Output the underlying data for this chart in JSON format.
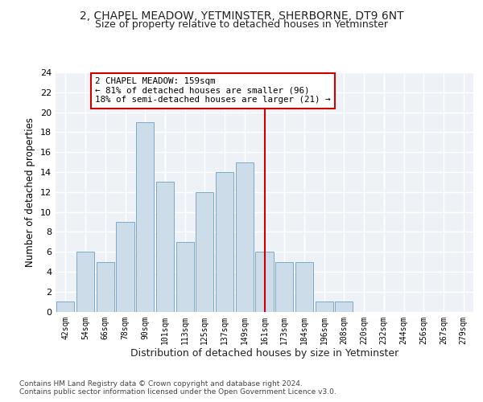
{
  "title": "2, CHAPEL MEADOW, YETMINSTER, SHERBORNE, DT9 6NT",
  "subtitle": "Size of property relative to detached houses in Yetminster",
  "xlabel": "Distribution of detached houses by size in Yetminster",
  "ylabel": "Number of detached properties",
  "bin_labels": [
    "42sqm",
    "54sqm",
    "66sqm",
    "78sqm",
    "90sqm",
    "101sqm",
    "113sqm",
    "125sqm",
    "137sqm",
    "149sqm",
    "161sqm",
    "173sqm",
    "184sqm",
    "196sqm",
    "208sqm",
    "220sqm",
    "232sqm",
    "244sqm",
    "256sqm",
    "267sqm",
    "279sqm"
  ],
  "bar_heights": [
    1,
    6,
    5,
    9,
    19,
    13,
    7,
    12,
    14,
    15,
    6,
    5,
    5,
    1,
    1,
    0,
    0,
    0,
    0,
    0,
    0
  ],
  "bar_color": "#ccdce8",
  "bar_edgecolor": "#7aaac8",
  "vline_x_index": 10,
  "vline_color": "#cc0000",
  "annotation_text": "2 CHAPEL MEADOW: 159sqm\n← 81% of detached houses are smaller (96)\n18% of semi-detached houses are larger (21) →",
  "annotation_box_color": "#cc0000",
  "background_color": "#eef2f7",
  "grid_color": "#ffffff",
  "fig_background": "#ffffff",
  "ylim": [
    0,
    24
  ],
  "yticks": [
    0,
    2,
    4,
    6,
    8,
    10,
    12,
    14,
    16,
    18,
    20,
    22,
    24
  ],
  "footer_text": "Contains HM Land Registry data © Crown copyright and database right 2024.\nContains public sector information licensed under the Open Government Licence v3.0.",
  "title_fontsize": 10,
  "subtitle_fontsize": 9,
  "xlabel_fontsize": 9,
  "ylabel_fontsize": 8.5
}
